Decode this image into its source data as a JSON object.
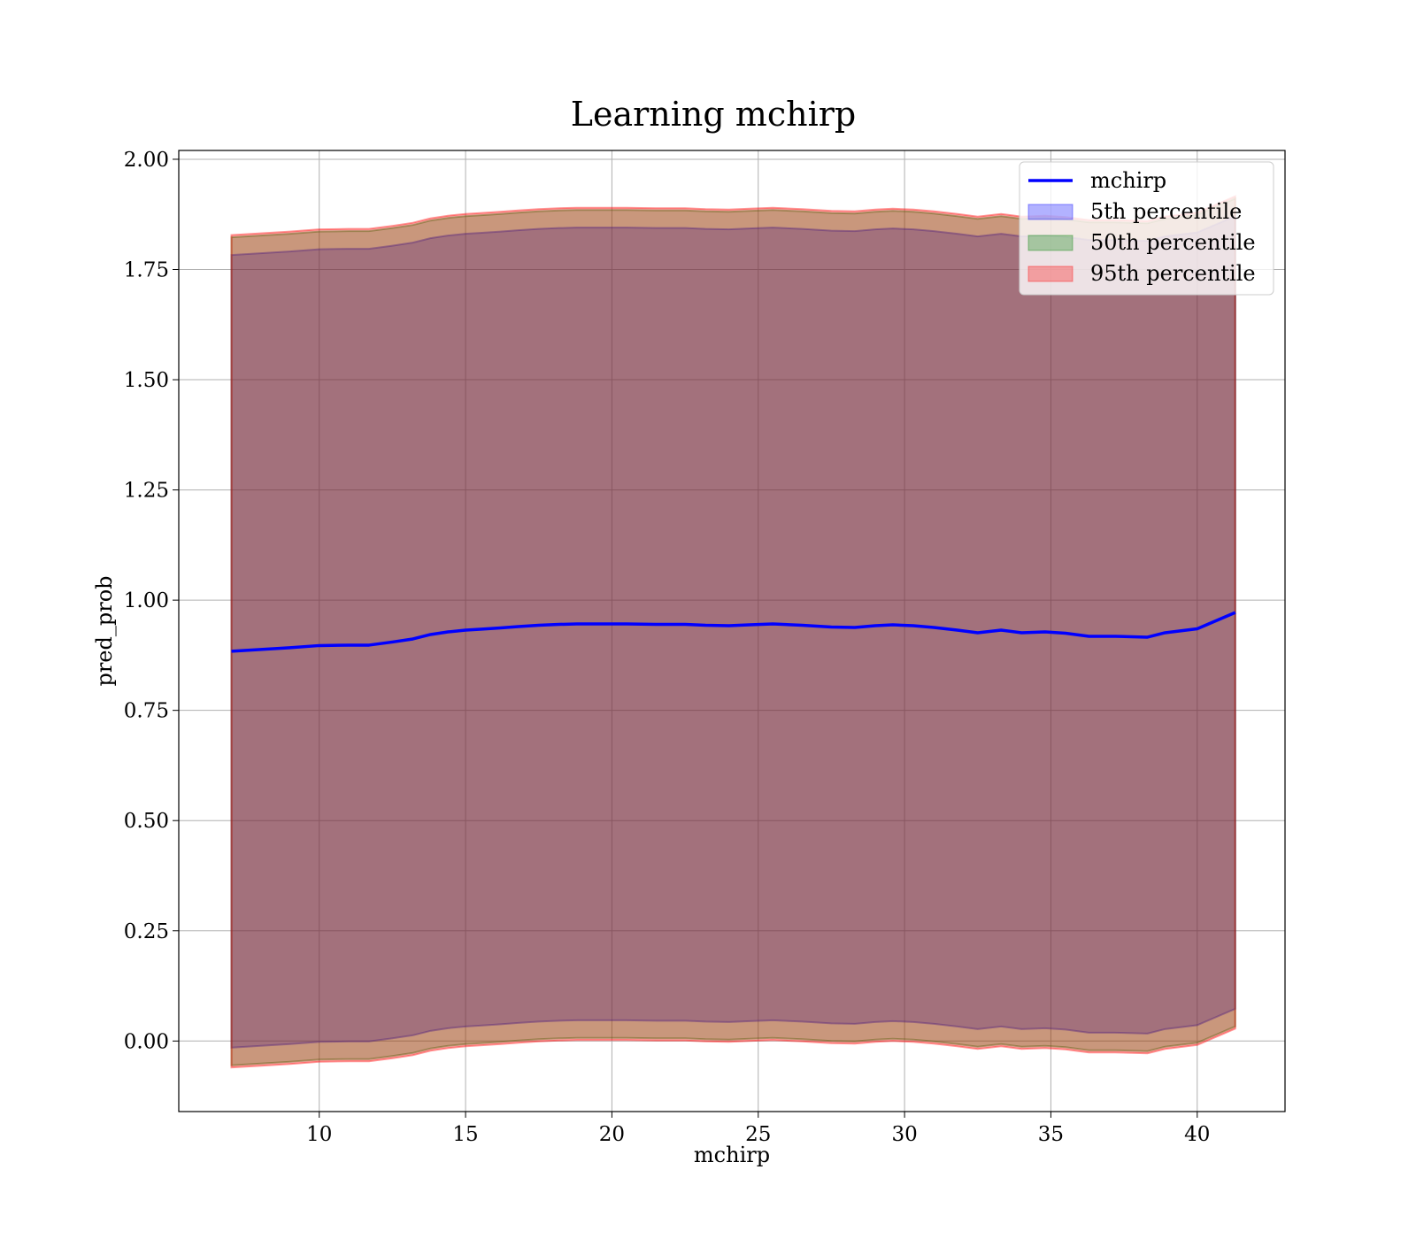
{
  "chart_data": {
    "type": "line",
    "title": "Learning mchirp",
    "xlabel": "mchirp",
    "ylabel": "pred_prob",
    "xlim": [
      5.2,
      43
    ],
    "ylim": [
      -0.16,
      2.02
    ],
    "xticks": [
      10,
      15,
      20,
      25,
      30,
      35,
      40
    ],
    "yticks": [
      0.0,
      0.25,
      0.5,
      0.75,
      1.0,
      1.25,
      1.5,
      1.75,
      2.0
    ],
    "xtick_labels": [
      "10",
      "15",
      "20",
      "25",
      "30",
      "35",
      "40"
    ],
    "ytick_labels": [
      "0.00",
      "0.25",
      "0.50",
      "0.75",
      "1.00",
      "1.25",
      "1.50",
      "1.75",
      "2.00"
    ],
    "grid": true,
    "legend_position": "top-right",
    "x": [
      7.0,
      8.0,
      9.0,
      10.0,
      11.0,
      11.7,
      12.5,
      13.2,
      13.8,
      14.4,
      15.0,
      15.5,
      16.2,
      16.8,
      17.5,
      18.2,
      18.8,
      19.3,
      19.8,
      20.5,
      21.5,
      22.5,
      23.2,
      24.0,
      24.7,
      25.5,
      26.5,
      27.5,
      28.3,
      29.0,
      29.6,
      30.3,
      31.0,
      31.8,
      32.5,
      33.3,
      34.0,
      34.8,
      35.5,
      36.3,
      37.2,
      38.3,
      38.9,
      40.0,
      41.3
    ],
    "series": [
      {
        "name": "mchirp",
        "type": "line",
        "color": "#0000ff",
        "values": [
          0.884,
          0.888,
          0.892,
          0.897,
          0.898,
          0.898,
          0.905,
          0.912,
          0.922,
          0.928,
          0.932,
          0.934,
          0.937,
          0.94,
          0.943,
          0.945,
          0.946,
          0.946,
          0.946,
          0.946,
          0.945,
          0.945,
          0.943,
          0.942,
          0.944,
          0.946,
          0.943,
          0.939,
          0.938,
          0.942,
          0.944,
          0.942,
          0.938,
          0.932,
          0.926,
          0.932,
          0.926,
          0.928,
          0.925,
          0.918,
          0.918,
          0.916,
          0.926,
          0.935,
          0.972
        ]
      },
      {
        "name": "5th percentile",
        "type": "band",
        "color": "#0000ff",
        "opacity": 0.3,
        "lower": [
          -0.015,
          -0.011,
          -0.007,
          -0.002,
          -0.001,
          -0.001,
          0.006,
          0.013,
          0.023,
          0.029,
          0.033,
          0.035,
          0.038,
          0.041,
          0.044,
          0.046,
          0.047,
          0.047,
          0.047,
          0.047,
          0.046,
          0.046,
          0.044,
          0.043,
          0.045,
          0.047,
          0.044,
          0.04,
          0.039,
          0.043,
          0.045,
          0.043,
          0.039,
          0.033,
          0.027,
          0.033,
          0.027,
          0.029,
          0.026,
          0.019,
          0.019,
          0.017,
          0.027,
          0.036,
          0.073
        ],
        "upper": [
          1.783,
          1.787,
          1.791,
          1.796,
          1.797,
          1.797,
          1.804,
          1.811,
          1.821,
          1.827,
          1.831,
          1.833,
          1.836,
          1.839,
          1.842,
          1.844,
          1.845,
          1.845,
          1.845,
          1.845,
          1.844,
          1.844,
          1.842,
          1.841,
          1.843,
          1.845,
          1.842,
          1.838,
          1.837,
          1.841,
          1.843,
          1.841,
          1.837,
          1.831,
          1.825,
          1.831,
          1.825,
          1.827,
          1.824,
          1.817,
          1.817,
          1.815,
          1.825,
          1.834,
          1.871
        ]
      },
      {
        "name": "50th percentile",
        "type": "band",
        "color": "#008000",
        "opacity": 0.3,
        "lower": [
          -0.055,
          -0.051,
          -0.047,
          -0.042,
          -0.041,
          -0.041,
          -0.034,
          -0.027,
          -0.017,
          -0.011,
          -0.007,
          -0.005,
          -0.002,
          0.001,
          0.004,
          0.006,
          0.007,
          0.007,
          0.007,
          0.007,
          0.006,
          0.006,
          0.004,
          0.003,
          0.005,
          0.007,
          0.004,
          0.0,
          -0.001,
          0.003,
          0.005,
          0.003,
          -0.001,
          -0.007,
          -0.013,
          -0.007,
          -0.013,
          -0.011,
          -0.014,
          -0.021,
          -0.021,
          -0.023,
          -0.013,
          -0.004,
          0.033
        ],
        "upper": [
          1.823,
          1.827,
          1.831,
          1.836,
          1.837,
          1.837,
          1.844,
          1.851,
          1.861,
          1.867,
          1.871,
          1.873,
          1.876,
          1.879,
          1.882,
          1.884,
          1.885,
          1.885,
          1.885,
          1.885,
          1.884,
          1.884,
          1.882,
          1.881,
          1.883,
          1.885,
          1.882,
          1.878,
          1.877,
          1.881,
          1.883,
          1.881,
          1.877,
          1.871,
          1.865,
          1.871,
          1.865,
          1.867,
          1.864,
          1.857,
          1.857,
          1.855,
          1.865,
          1.874,
          1.911
        ]
      },
      {
        "name": "95th percentile",
        "type": "band",
        "color": "#ff0000",
        "opacity": 0.3,
        "lower": [
          -0.06,
          -0.056,
          -0.052,
          -0.047,
          -0.046,
          -0.046,
          -0.039,
          -0.032,
          -0.022,
          -0.016,
          -0.012,
          -0.01,
          -0.007,
          -0.004,
          -0.001,
          0.001,
          0.002,
          0.002,
          0.002,
          0.002,
          0.001,
          0.001,
          -0.001,
          -0.002,
          0.0,
          0.002,
          -0.001,
          -0.005,
          -0.006,
          -0.002,
          0.0,
          -0.002,
          -0.006,
          -0.012,
          -0.018,
          -0.012,
          -0.018,
          -0.016,
          -0.019,
          -0.026,
          -0.026,
          -0.028,
          -0.018,
          -0.009,
          0.028
        ],
        "upper": [
          1.828,
          1.832,
          1.836,
          1.841,
          1.842,
          1.842,
          1.849,
          1.856,
          1.866,
          1.872,
          1.876,
          1.878,
          1.881,
          1.884,
          1.887,
          1.889,
          1.89,
          1.89,
          1.89,
          1.89,
          1.889,
          1.889,
          1.887,
          1.886,
          1.888,
          1.89,
          1.887,
          1.883,
          1.882,
          1.886,
          1.888,
          1.886,
          1.882,
          1.876,
          1.87,
          1.876,
          1.87,
          1.872,
          1.869,
          1.862,
          1.862,
          1.86,
          1.87,
          1.879,
          1.916
        ]
      }
    ]
  }
}
